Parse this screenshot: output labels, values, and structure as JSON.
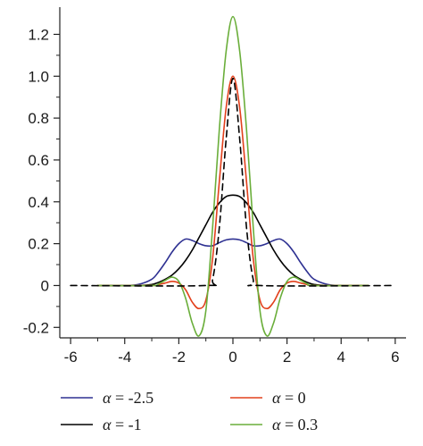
{
  "chart_data": {
    "type": "line",
    "title": "",
    "xlabel": "",
    "ylabel": "",
    "xlim": [
      -6.4,
      6.4
    ],
    "ylim": [
      -0.25,
      1.33
    ],
    "x_ticks": [
      -6,
      -4,
      -2,
      0,
      2,
      4,
      6
    ],
    "x_tick_labels": [
      "-6",
      "-4",
      "-2",
      "0",
      "2",
      "4",
      "6"
    ],
    "y_ticks": [
      -0.2,
      0,
      0.2,
      0.4,
      0.6,
      0.8,
      1.0,
      1.2
    ],
    "y_tick_labels": [
      "-0.2",
      "0",
      "0.2",
      "0.4",
      "0.6",
      "0.8",
      "1.0",
      "1.2"
    ],
    "grid": false,
    "legend_placement": "bottom",
    "series": [
      {
        "name": "α = -2.5",
        "legend_symbol": "α",
        "legend_value": "= -2.5",
        "color": "#2e3192",
        "dash": "solid",
        "x": [
          -5,
          -4,
          -3.5,
          -3,
          -2.75,
          -2.5,
          -2.25,
          -2,
          -1.75,
          -1.5,
          -1.25,
          -1,
          -0.75,
          -0.5,
          -0.25,
          0,
          0.25,
          0.5,
          0.75,
          1,
          1.25,
          1.5,
          1.75,
          2,
          2.25,
          2.5,
          2.75,
          3,
          3.5,
          4,
          5
        ],
        "y": [
          0,
          0,
          0.005,
          0.03,
          0.065,
          0.11,
          0.16,
          0.2,
          0.222,
          0.215,
          0.2,
          0.19,
          0.19,
          0.205,
          0.218,
          0.222,
          0.218,
          0.205,
          0.19,
          0.19,
          0.2,
          0.215,
          0.222,
          0.2,
          0.16,
          0.11,
          0.065,
          0.03,
          0.005,
          0,
          0
        ]
      },
      {
        "name": "α = -1",
        "legend_symbol": "α",
        "legend_value": "= -1",
        "color": "#000000",
        "dash": "solid",
        "x": [
          -5,
          -3.5,
          -3,
          -2.75,
          -2.5,
          -2.25,
          -2,
          -1.75,
          -1.5,
          -1.25,
          -1,
          -0.75,
          -0.5,
          -0.25,
          0,
          0.25,
          0.5,
          0.75,
          1,
          1.25,
          1.5,
          1.75,
          2,
          2.25,
          2.5,
          2.75,
          3,
          3.5,
          5
        ],
        "y": [
          0,
          0,
          0.005,
          0.015,
          0.03,
          0.05,
          0.08,
          0.12,
          0.17,
          0.23,
          0.29,
          0.35,
          0.395,
          0.425,
          0.432,
          0.425,
          0.395,
          0.35,
          0.29,
          0.23,
          0.17,
          0.12,
          0.08,
          0.05,
          0.03,
          0.015,
          0.005,
          0,
          0
        ]
      },
      {
        "name": "α = 0",
        "legend_symbol": "α",
        "legend_value": "= 0",
        "color": "#e2401c",
        "dash": "solid",
        "x": [
          -5,
          -3,
          -2.75,
          -2.5,
          -2.25,
          -2,
          -1.75,
          -1.5,
          -1.25,
          -1,
          -0.75,
          -0.5,
          -0.25,
          0,
          0.25,
          0.5,
          0.75,
          1,
          1.25,
          1.5,
          1.75,
          2,
          2.25,
          2.5,
          2.75,
          3,
          5
        ],
        "y": [
          0,
          0,
          0.005,
          0.012,
          0.02,
          0.012,
          -0.02,
          -0.08,
          -0.11,
          -0.07,
          0.13,
          0.5,
          0.85,
          1.0,
          0.85,
          0.5,
          0.13,
          -0.07,
          -0.11,
          -0.08,
          -0.02,
          0.012,
          0.02,
          0.012,
          0.005,
          0,
          0
        ]
      },
      {
        "name": "α = 0.3",
        "legend_symbol": "α",
        "legend_value": "= 0.3",
        "color": "#6aae3a",
        "dash": "solid",
        "x": [
          -5,
          -3,
          -2.75,
          -2.5,
          -2.25,
          -2,
          -1.75,
          -1.5,
          -1.25,
          -1,
          -0.75,
          -0.5,
          -0.25,
          0,
          0.25,
          0.5,
          0.75,
          1,
          1.25,
          1.5,
          1.75,
          2,
          2.25,
          2.5,
          2.75,
          3,
          5
        ],
        "y": [
          0,
          0,
          0.008,
          0.025,
          0.04,
          0.02,
          -0.06,
          -0.18,
          -0.24,
          -0.12,
          0.28,
          0.75,
          1.12,
          1.285,
          1.12,
          0.75,
          0.28,
          -0.12,
          -0.24,
          -0.18,
          -0.06,
          0.02,
          0.04,
          0.025,
          0.008,
          0,
          0
        ]
      },
      {
        "name": "",
        "color": "#000000",
        "dash": "dashed",
        "x": [
          -6,
          -1,
          -0.75,
          -0.5,
          -0.25,
          0,
          0.25,
          0.5,
          0.75,
          1,
          6
        ],
        "y": [
          0,
          0,
          0.03,
          0.28,
          0.7,
          0.99,
          0.7,
          0.28,
          0.03,
          0,
          0
        ]
      }
    ]
  }
}
